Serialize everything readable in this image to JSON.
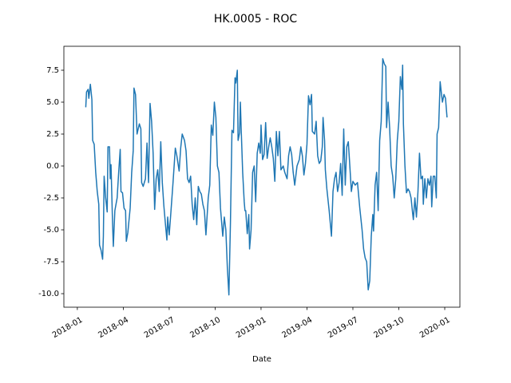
{
  "chart_data": {
    "type": "line",
    "title": "HK.0005 - ROC",
    "x_label": "Date",
    "xlim": [
      -0.88,
      24.99
    ],
    "xticks": [
      {
        "value": 0,
        "label": "2018-01"
      },
      {
        "value": 3,
        "label": "2018-04"
      },
      {
        "value": 6,
        "label": "2018-07"
      },
      {
        "value": 9,
        "label": "2018-10"
      },
      {
        "value": 12,
        "label": "2019-01"
      },
      {
        "value": 15,
        "label": "2019-04"
      },
      {
        "value": 18,
        "label": "2019-07"
      },
      {
        "value": 21,
        "label": "2019-10"
      },
      {
        "value": 24,
        "label": "2020-01"
      }
    ],
    "ylim": [
      -11.06,
      9.375
    ],
    "yticks": [
      {
        "value": -10,
        "label": "-10.0"
      },
      -7.5,
      {
        "value": -5,
        "label": "-5.0"
      },
      -2.5,
      {
        "value": 0,
        "label": "0.0"
      },
      2.5,
      {
        "value": 5,
        "label": "5.0"
      },
      7.5
    ],
    "grid": false,
    "series": [
      {
        "color": "#1f77b4",
        "x": [
          0.55,
          0.6,
          0.7,
          0.75,
          0.85,
          0.95,
          1.0,
          1.1,
          1.2,
          1.3,
          1.4,
          1.45,
          1.55,
          1.65,
          1.7,
          1.75,
          1.85,
          1.95,
          2.0,
          2.1,
          2.15,
          2.2,
          2.3,
          2.35,
          2.45,
          2.6,
          2.7,
          2.8,
          2.85,
          2.95,
          3.05,
          3.15,
          3.2,
          3.3,
          3.45,
          3.55,
          3.65,
          3.7,
          3.8,
          3.9,
          4.05,
          4.15,
          4.2,
          4.3,
          4.45,
          4.55,
          4.65,
          4.75,
          4.85,
          4.95,
          5.05,
          5.15,
          5.25,
          5.35,
          5.45,
          5.55,
          5.65,
          5.75,
          5.85,
          5.9,
          6.0,
          6.1,
          6.25,
          6.4,
          6.5,
          6.65,
          6.75,
          6.85,
          7.0,
          7.1,
          7.2,
          7.3,
          7.4,
          7.5,
          7.6,
          7.7,
          7.8,
          7.9,
          8.0,
          8.1,
          8.2,
          8.3,
          8.4,
          8.55,
          8.65,
          8.75,
          8.85,
          8.95,
          9.05,
          9.15,
          9.25,
          9.35,
          9.5,
          9.6,
          9.7,
          9.8,
          9.9,
          10.0,
          10.1,
          10.2,
          10.3,
          10.35,
          10.45,
          10.5,
          10.6,
          10.65,
          10.7,
          10.8,
          10.9,
          10.95,
          11.0,
          11.1,
          11.2,
          11.25,
          11.35,
          11.45,
          11.55,
          11.65,
          11.75,
          11.85,
          11.95,
          12.0,
          12.1,
          12.2,
          12.3,
          12.4,
          12.5,
          12.6,
          12.7,
          12.8,
          12.9,
          13.0,
          13.1,
          13.2,
          13.3,
          13.45,
          13.55,
          13.7,
          13.8,
          13.9,
          14.0,
          14.1,
          14.2,
          14.35,
          14.5,
          14.6,
          14.7,
          14.8,
          14.9,
          15.0,
          15.1,
          15.2,
          15.3,
          15.35,
          15.5,
          15.6,
          15.7,
          15.8,
          15.9,
          16.0,
          16.05,
          16.15,
          16.2,
          16.3,
          16.45,
          16.6,
          16.7,
          16.8,
          16.9,
          17.0,
          17.1,
          17.2,
          17.3,
          17.4,
          17.5,
          17.6,
          17.7,
          17.8,
          17.9,
          18.0,
          18.15,
          18.3,
          18.45,
          18.6,
          18.7,
          18.8,
          18.9,
          19.0,
          19.1,
          19.2,
          19.3,
          19.35,
          19.45,
          19.55,
          19.65,
          19.75,
          19.85,
          19.95,
          20.05,
          20.15,
          20.2,
          20.3,
          20.4,
          20.5,
          20.6,
          20.7,
          20.8,
          20.9,
          21.0,
          21.1,
          21.2,
          21.25,
          21.3,
          21.4,
          21.5,
          21.6,
          21.7,
          21.8,
          21.9,
          21.95,
          22.05,
          22.15,
          22.25,
          22.35,
          22.45,
          22.55,
          22.6,
          22.7,
          22.8,
          22.9,
          23.0,
          23.1,
          23.15,
          23.25,
          23.35,
          23.45,
          23.5,
          23.6,
          23.7,
          23.8,
          23.85,
          23.95,
          24.05,
          24.15
        ],
        "values": [
          4.6,
          5.8,
          6.0,
          5.3,
          6.4,
          5.2,
          2.0,
          1.7,
          -0.5,
          -2.0,
          -3.0,
          -6.2,
          -6.6,
          -7.3,
          -5.5,
          -0.8,
          -2.5,
          -3.6,
          1.5,
          1.5,
          -1.0,
          0.1,
          -4.5,
          -6.3,
          -3.5,
          -2.5,
          -0.5,
          1.3,
          -2.0,
          -2.1,
          -3.3,
          -3.5,
          -5.9,
          -5.2,
          -3.3,
          -0.5,
          1.2,
          6.1,
          5.6,
          2.5,
          3.3,
          2.9,
          -1.3,
          -1.6,
          -1.0,
          1.8,
          -1.3,
          4.9,
          3.5,
          1.0,
          -3.4,
          -1.0,
          -0.3,
          -2.0,
          1.9,
          -1.3,
          -3.1,
          -4.5,
          -5.8,
          -4.0,
          -5.4,
          -3.8,
          -1.3,
          1.4,
          0.8,
          -0.4,
          1.4,
          2.5,
          2.0,
          1.2,
          -1.0,
          -1.3,
          -0.8,
          -3.0,
          -4.2,
          -2.5,
          -4.6,
          -1.6,
          -2.0,
          -2.2,
          -3.0,
          -3.5,
          -5.4,
          -2.5,
          -1.5,
          3.2,
          2.4,
          5.0,
          3.8,
          0.0,
          -0.5,
          -3.3,
          -5.5,
          -4.0,
          -5.0,
          -8.0,
          -10.1,
          -4.5,
          2.8,
          2.6,
          6.9,
          6.5,
          7.5,
          2.0,
          2.6,
          5.0,
          3.0,
          -0.5,
          -2.8,
          -3.5,
          -3.5,
          -5.3,
          -3.8,
          -6.5,
          -5.0,
          -0.5,
          0.0,
          -2.8,
          1.0,
          1.8,
          1.0,
          3.2,
          0.5,
          0.9,
          3.4,
          0.6,
          1.5,
          2.2,
          1.5,
          0.6,
          -1.2,
          2.7,
          0.8,
          2.7,
          -0.3,
          0.0,
          -0.5,
          -1.0,
          0.8,
          1.5,
          0.9,
          -0.5,
          -1.5,
          0.0,
          0.5,
          1.5,
          0.8,
          -0.7,
          0.2,
          1.7,
          5.5,
          4.8,
          5.6,
          2.7,
          2.5,
          3.5,
          0.8,
          0.2,
          0.4,
          1.5,
          3.8,
          2.0,
          -0.3,
          -1.8,
          -3.5,
          -5.5,
          -2.0,
          -1.0,
          -0.5,
          -2.0,
          -1.3,
          0.2,
          -2.3,
          2.9,
          -1.5,
          1.5,
          1.9,
          0.0,
          -2.0,
          -1.2,
          -1.5,
          -1.3,
          -3.3,
          -5.0,
          -6.5,
          -7.2,
          -7.5,
          -9.7,
          -9.0,
          -5.5,
          -3.8,
          -5.1,
          -1.5,
          -0.5,
          -3.5,
          2.0,
          3.5,
          8.4,
          8.0,
          7.8,
          3.0,
          5.0,
          3.0,
          0.0,
          -0.8,
          -2.5,
          -1.0,
          2.0,
          3.5,
          7.0,
          6.0,
          7.9,
          3.3,
          0.0,
          -2.1,
          -1.8,
          -2.0,
          -2.5,
          -3.7,
          -4.2,
          -2.5,
          -4.0,
          -2.0,
          1.0,
          -1.0,
          -0.8,
          -3.0,
          -1.0,
          -2.5,
          -1.0,
          -1.5,
          -0.8,
          -3.2,
          -0.8,
          -0.8,
          -2.5,
          2.5,
          3.0,
          6.6,
          5.5,
          5.0,
          5.6,
          5.3,
          3.8
        ]
      }
    ]
  }
}
